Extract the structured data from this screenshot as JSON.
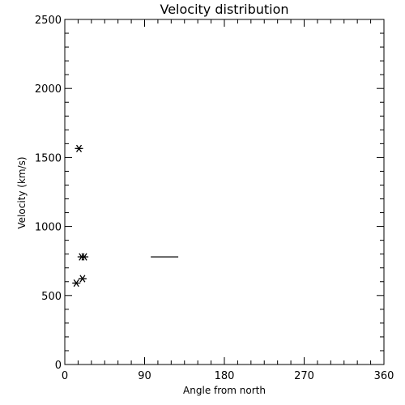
{
  "chart_data": {
    "type": "scatter",
    "title": "Velocity distribution",
    "xlabel": "Angle from north",
    "ylabel": "Velocity (km/s)",
    "xlim": [
      0,
      360
    ],
    "ylim": [
      0,
      2500
    ],
    "xticks": [
      0,
      90,
      180,
      270,
      360
    ],
    "yticks": [
      0,
      500,
      1000,
      1500,
      2000,
      2500
    ],
    "grid": false,
    "points": [
      {
        "x": 16,
        "y": 1565
      },
      {
        "x": 19,
        "y": 780
      },
      {
        "x": 22,
        "y": 780
      },
      {
        "x": 20,
        "y": 622
      },
      {
        "x": 13,
        "y": 590
      }
    ],
    "segments": [
      {
        "x1": 97,
        "x2": 128,
        "y": 780
      }
    ],
    "colors": {
      "foreground": "#000000",
      "background": "#ffffff"
    }
  }
}
